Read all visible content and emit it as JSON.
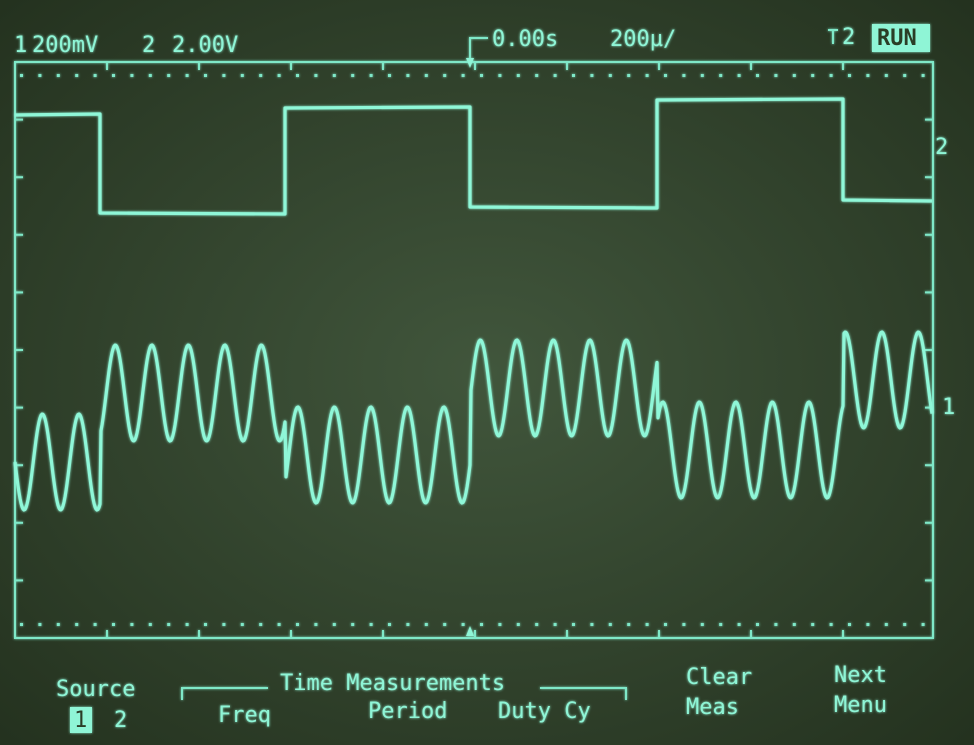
{
  "status_bar": {
    "ch1_label": "1",
    "ch1_scale": "200mV",
    "ch2_label": "2",
    "ch2_scale": "2.00V",
    "time_offset": "0.00s",
    "time_base": "200µ/",
    "trigger_source": "2",
    "run_state": "RUN"
  },
  "markers": {
    "ch2": "2",
    "ch1": "1"
  },
  "softkeys": {
    "source": {
      "label": "Source",
      "options": [
        "1",
        "2"
      ]
    },
    "group_label": "Time Measurements",
    "freq": "Freq",
    "period": "Period",
    "duty_cycle": "Duty Cy",
    "clear": {
      "line1": "Clear",
      "line2": "Meas"
    },
    "next": {
      "line1": "Next",
      "line2": "Menu"
    }
  }
}
